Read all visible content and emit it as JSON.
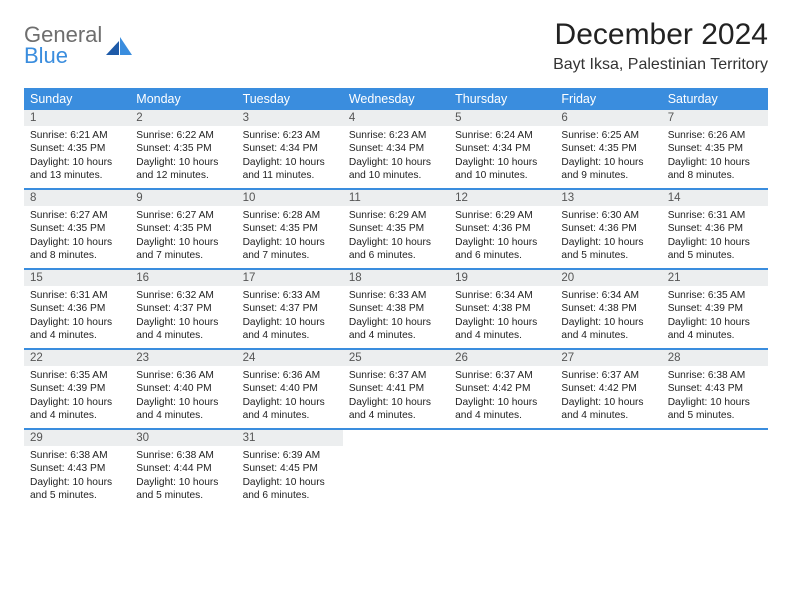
{
  "brand": {
    "general": "General",
    "blue": "Blue"
  },
  "title": "December 2024",
  "location": "Bayt Iksa, Palestinian Territory",
  "colors": {
    "header_bg": "#3a8dde",
    "header_text": "#ffffff",
    "daynum_bg": "#eceeef",
    "daynum_text": "#555555",
    "body_text": "#222222",
    "page_bg": "#ffffff",
    "logo_gray": "#6e6e6e",
    "logo_blue": "#3a8dde"
  },
  "typography": {
    "title_fontsize": 30,
    "location_fontsize": 16,
    "dow_fontsize": 12.5,
    "daynum_fontsize": 11.5,
    "body_fontsize": 10.2
  },
  "days_of_week": [
    "Sunday",
    "Monday",
    "Tuesday",
    "Wednesday",
    "Thursday",
    "Friday",
    "Saturday"
  ],
  "weeks": [
    [
      {
        "n": "1",
        "sr": "Sunrise: 6:21 AM",
        "ss": "Sunset: 4:35 PM",
        "dl": "Daylight: 10 hours and 13 minutes."
      },
      {
        "n": "2",
        "sr": "Sunrise: 6:22 AM",
        "ss": "Sunset: 4:35 PM",
        "dl": "Daylight: 10 hours and 12 minutes."
      },
      {
        "n": "3",
        "sr": "Sunrise: 6:23 AM",
        "ss": "Sunset: 4:34 PM",
        "dl": "Daylight: 10 hours and 11 minutes."
      },
      {
        "n": "4",
        "sr": "Sunrise: 6:23 AM",
        "ss": "Sunset: 4:34 PM",
        "dl": "Daylight: 10 hours and 10 minutes."
      },
      {
        "n": "5",
        "sr": "Sunrise: 6:24 AM",
        "ss": "Sunset: 4:34 PM",
        "dl": "Daylight: 10 hours and 10 minutes."
      },
      {
        "n": "6",
        "sr": "Sunrise: 6:25 AM",
        "ss": "Sunset: 4:35 PM",
        "dl": "Daylight: 10 hours and 9 minutes."
      },
      {
        "n": "7",
        "sr": "Sunrise: 6:26 AM",
        "ss": "Sunset: 4:35 PM",
        "dl": "Daylight: 10 hours and 8 minutes."
      }
    ],
    [
      {
        "n": "8",
        "sr": "Sunrise: 6:27 AM",
        "ss": "Sunset: 4:35 PM",
        "dl": "Daylight: 10 hours and 8 minutes."
      },
      {
        "n": "9",
        "sr": "Sunrise: 6:27 AM",
        "ss": "Sunset: 4:35 PM",
        "dl": "Daylight: 10 hours and 7 minutes."
      },
      {
        "n": "10",
        "sr": "Sunrise: 6:28 AM",
        "ss": "Sunset: 4:35 PM",
        "dl": "Daylight: 10 hours and 7 minutes."
      },
      {
        "n": "11",
        "sr": "Sunrise: 6:29 AM",
        "ss": "Sunset: 4:35 PM",
        "dl": "Daylight: 10 hours and 6 minutes."
      },
      {
        "n": "12",
        "sr": "Sunrise: 6:29 AM",
        "ss": "Sunset: 4:36 PM",
        "dl": "Daylight: 10 hours and 6 minutes."
      },
      {
        "n": "13",
        "sr": "Sunrise: 6:30 AM",
        "ss": "Sunset: 4:36 PM",
        "dl": "Daylight: 10 hours and 5 minutes."
      },
      {
        "n": "14",
        "sr": "Sunrise: 6:31 AM",
        "ss": "Sunset: 4:36 PM",
        "dl": "Daylight: 10 hours and 5 minutes."
      }
    ],
    [
      {
        "n": "15",
        "sr": "Sunrise: 6:31 AM",
        "ss": "Sunset: 4:36 PM",
        "dl": "Daylight: 10 hours and 4 minutes."
      },
      {
        "n": "16",
        "sr": "Sunrise: 6:32 AM",
        "ss": "Sunset: 4:37 PM",
        "dl": "Daylight: 10 hours and 4 minutes."
      },
      {
        "n": "17",
        "sr": "Sunrise: 6:33 AM",
        "ss": "Sunset: 4:37 PM",
        "dl": "Daylight: 10 hours and 4 minutes."
      },
      {
        "n": "18",
        "sr": "Sunrise: 6:33 AM",
        "ss": "Sunset: 4:38 PM",
        "dl": "Daylight: 10 hours and 4 minutes."
      },
      {
        "n": "19",
        "sr": "Sunrise: 6:34 AM",
        "ss": "Sunset: 4:38 PM",
        "dl": "Daylight: 10 hours and 4 minutes."
      },
      {
        "n": "20",
        "sr": "Sunrise: 6:34 AM",
        "ss": "Sunset: 4:38 PM",
        "dl": "Daylight: 10 hours and 4 minutes."
      },
      {
        "n": "21",
        "sr": "Sunrise: 6:35 AM",
        "ss": "Sunset: 4:39 PM",
        "dl": "Daylight: 10 hours and 4 minutes."
      }
    ],
    [
      {
        "n": "22",
        "sr": "Sunrise: 6:35 AM",
        "ss": "Sunset: 4:39 PM",
        "dl": "Daylight: 10 hours and 4 minutes."
      },
      {
        "n": "23",
        "sr": "Sunrise: 6:36 AM",
        "ss": "Sunset: 4:40 PM",
        "dl": "Daylight: 10 hours and 4 minutes."
      },
      {
        "n": "24",
        "sr": "Sunrise: 6:36 AM",
        "ss": "Sunset: 4:40 PM",
        "dl": "Daylight: 10 hours and 4 minutes."
      },
      {
        "n": "25",
        "sr": "Sunrise: 6:37 AM",
        "ss": "Sunset: 4:41 PM",
        "dl": "Daylight: 10 hours and 4 minutes."
      },
      {
        "n": "26",
        "sr": "Sunrise: 6:37 AM",
        "ss": "Sunset: 4:42 PM",
        "dl": "Daylight: 10 hours and 4 minutes."
      },
      {
        "n": "27",
        "sr": "Sunrise: 6:37 AM",
        "ss": "Sunset: 4:42 PM",
        "dl": "Daylight: 10 hours and 4 minutes."
      },
      {
        "n": "28",
        "sr": "Sunrise: 6:38 AM",
        "ss": "Sunset: 4:43 PM",
        "dl": "Daylight: 10 hours and 5 minutes."
      }
    ],
    [
      {
        "n": "29",
        "sr": "Sunrise: 6:38 AM",
        "ss": "Sunset: 4:43 PM",
        "dl": "Daylight: 10 hours and 5 minutes."
      },
      {
        "n": "30",
        "sr": "Sunrise: 6:38 AM",
        "ss": "Sunset: 4:44 PM",
        "dl": "Daylight: 10 hours and 5 minutes."
      },
      {
        "n": "31",
        "sr": "Sunrise: 6:39 AM",
        "ss": "Sunset: 4:45 PM",
        "dl": "Daylight: 10 hours and 6 minutes."
      },
      null,
      null,
      null,
      null
    ]
  ]
}
